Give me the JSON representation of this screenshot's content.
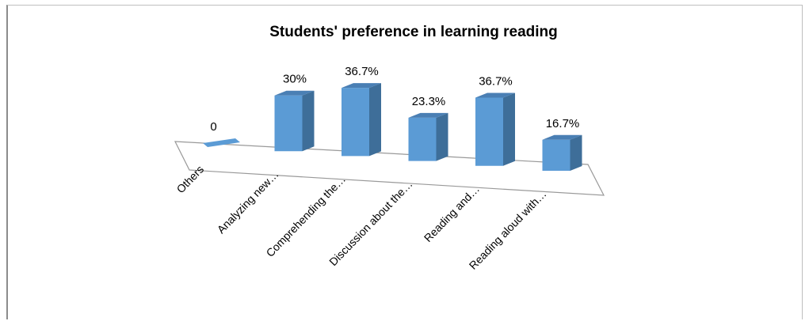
{
  "chart_data": {
    "type": "bar",
    "title": "Students' preference in learning reading",
    "categories": [
      "Others",
      "Analyzing new…",
      "Comprehending the…",
      "Discussion about the…",
      "Reading and…",
      "Reading aloud with…"
    ],
    "values": [
      0,
      30,
      36.7,
      23.3,
      36.7,
      16.7
    ],
    "data_labels": [
      "0",
      "30%",
      "36.7%",
      "23.3%",
      "36.7%",
      "16.7%"
    ],
    "xlabel": "",
    "ylabel": "",
    "ylim": [
      0,
      40
    ],
    "legend": "none",
    "grid": false,
    "style": "3d-column",
    "colors": {
      "bar_front": "#5b9bd5",
      "bar_side": "#3e6e99",
      "bar_top": "#4a7fb4",
      "floor_edge": "#999999"
    }
  }
}
